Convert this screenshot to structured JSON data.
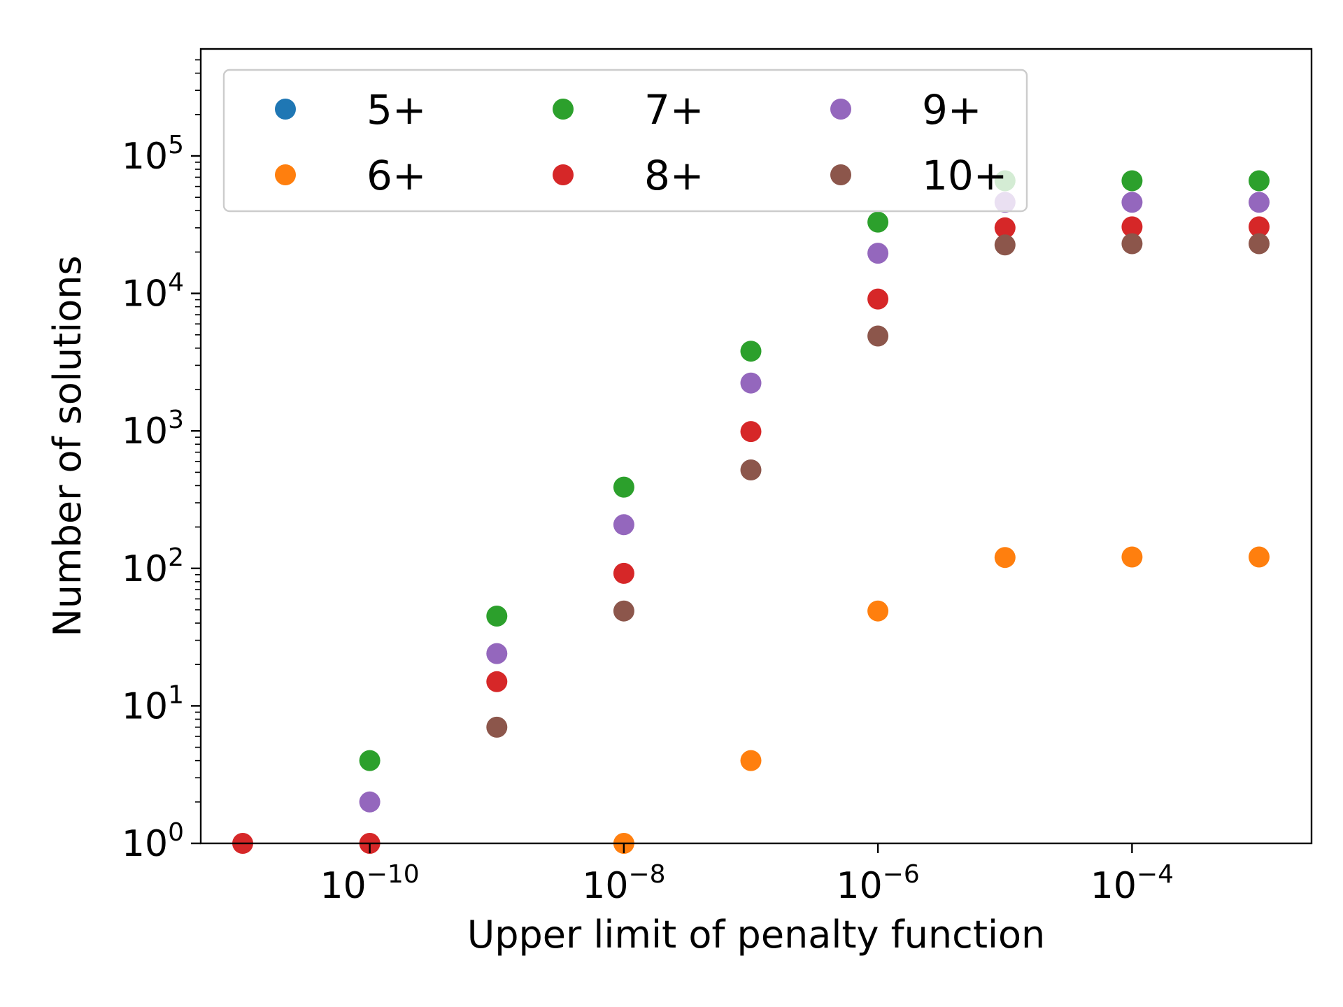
{
  "chart_data": {
    "type": "scatter",
    "xlabel": "Upper limit of penalty function",
    "ylabel": "Number of solutions",
    "xscale": "log",
    "yscale": "log",
    "xlim": [
      1e-11,
      0.001
    ],
    "ylim": [
      1,
      600000
    ],
    "grid": false,
    "legend": {
      "placement": "top-left",
      "columns": 3
    },
    "x_ticks": [
      {
        "base": "10",
        "exp": "−10",
        "value": 1e-10
      },
      {
        "base": "10",
        "exp": "−8",
        "value": 1e-08
      },
      {
        "base": "10",
        "exp": "−6",
        "value": 1e-06
      },
      {
        "base": "10",
        "exp": "−4",
        "value": 0.0001
      }
    ],
    "y_ticks": [
      {
        "base": "10",
        "exp": "0",
        "value": 1
      },
      {
        "base": "10",
        "exp": "1",
        "value": 10
      },
      {
        "base": "10",
        "exp": "2",
        "value": 100
      },
      {
        "base": "10",
        "exp": "3",
        "value": 1000
      },
      {
        "base": "10",
        "exp": "4",
        "value": 10000
      },
      {
        "base": "10",
        "exp": "5",
        "value": 100000
      }
    ],
    "series": [
      {
        "name": "5+",
        "color": "#1f77b4",
        "points": []
      },
      {
        "name": "6+",
        "color": "#ff7f0e",
        "points": [
          [
            1e-08,
            1
          ],
          [
            1e-07,
            4
          ],
          [
            1e-06,
            49
          ],
          [
            1e-05,
            120
          ],
          [
            0.0001,
            121
          ],
          [
            0.001,
            121
          ]
        ]
      },
      {
        "name": "7+",
        "color": "#2ca02c",
        "points": [
          [
            1e-10,
            4
          ],
          [
            1e-09,
            45
          ],
          [
            1e-08,
            390
          ],
          [
            1e-07,
            3800
          ],
          [
            1e-06,
            33000
          ],
          [
            1e-05,
            66000
          ],
          [
            0.0001,
            66000
          ],
          [
            0.001,
            66000
          ]
        ]
      },
      {
        "name": "8+",
        "color": "#d62728",
        "points": [
          [
            1e-11,
            1
          ],
          [
            1e-10,
            1
          ],
          [
            1e-09,
            15
          ],
          [
            1e-08,
            92
          ],
          [
            1e-07,
            990
          ],
          [
            1e-06,
            9100
          ],
          [
            1e-05,
            30000
          ],
          [
            0.0001,
            30500
          ],
          [
            0.001,
            30500
          ]
        ]
      },
      {
        "name": "9+",
        "color": "#9467bd",
        "points": [
          [
            1e-10,
            2
          ],
          [
            1e-09,
            24
          ],
          [
            1e-08,
            208
          ],
          [
            1e-07,
            2230
          ],
          [
            1e-06,
            19600
          ],
          [
            1e-05,
            46000
          ],
          [
            0.0001,
            46000
          ],
          [
            0.001,
            46000
          ]
        ]
      },
      {
        "name": "10+",
        "color": "#8c564b",
        "points": [
          [
            1e-09,
            7
          ],
          [
            1e-08,
            49
          ],
          [
            1e-07,
            520
          ],
          [
            1e-06,
            4900
          ],
          [
            1e-05,
            22500
          ],
          [
            0.0001,
            23000
          ],
          [
            0.001,
            23000
          ]
        ]
      }
    ]
  }
}
